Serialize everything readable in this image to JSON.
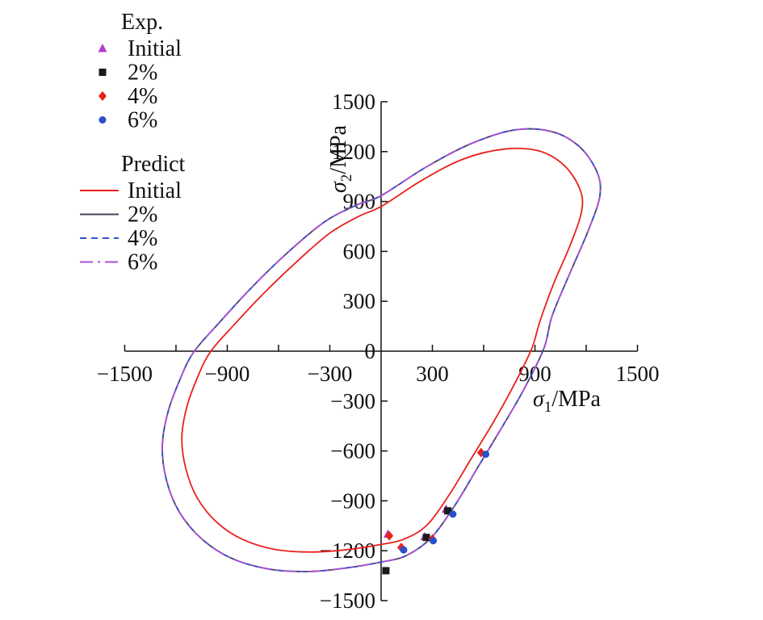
{
  "figure": {
    "background": "#ffffff",
    "axis_color": "#111111"
  },
  "chart_data": {
    "type": "line",
    "subtype": "yield-locus-with-experimental-scatter",
    "title": "",
    "x_axis": {
      "symbol": "σ",
      "subscript": "1",
      "unit": "/MPa",
      "min": -1500,
      "max": 1500,
      "tick_step": 300,
      "labeled_ticks": [
        -1500,
        -900,
        -300,
        300,
        900,
        1500
      ]
    },
    "y_axis": {
      "symbol": "σ",
      "subscript": "2",
      "unit": "/MPa",
      "min": -1500,
      "max": 1500,
      "tick_step": 300,
      "labeled_ticks": [
        1500,
        1200,
        900,
        600,
        300,
        0,
        -300,
        -600,
        -900,
        -1200,
        -1500
      ]
    },
    "legend": {
      "exp_header": "Exp.",
      "predict_header": "Predict"
    },
    "loci_shapes": {
      "initial": [
        [
          0,
          870
        ],
        [
          240,
          1028
        ],
        [
          480,
          1155
        ],
        [
          720,
          1215
        ],
        [
          920,
          1205
        ],
        [
          1068,
          1120
        ],
        [
          1160,
          982
        ],
        [
          1175,
          852
        ],
        [
          1112,
          652
        ],
        [
          1012,
          412
        ],
        [
          930,
          182
        ],
        [
          880,
          12
        ],
        [
          768,
          -222
        ],
        [
          648,
          -442
        ],
        [
          522,
          -655
        ],
        [
          396,
          -868
        ],
        [
          266,
          -1048
        ],
        [
          130,
          -1132
        ],
        [
          0,
          -1162
        ],
        [
          -186,
          -1192
        ],
        [
          -398,
          -1208
        ],
        [
          -620,
          -1192
        ],
        [
          -810,
          -1132
        ],
        [
          -962,
          -1028
        ],
        [
          -1076,
          -882
        ],
        [
          -1142,
          -708
        ],
        [
          -1166,
          -528
        ],
        [
          -1140,
          -348
        ],
        [
          -1076,
          -162
        ],
        [
          -1000,
          -6
        ],
        [
          -866,
          152
        ],
        [
          -692,
          342
        ],
        [
          -500,
          532
        ],
        [
          -300,
          710
        ],
        [
          -128,
          812
        ]
      ],
      "evolved": [
        [
          0,
          935
        ],
        [
          260,
          1105
        ],
        [
          520,
          1245
        ],
        [
          780,
          1330
        ],
        [
          1000,
          1320
        ],
        [
          1160,
          1230
        ],
        [
          1262,
          1080
        ],
        [
          1280,
          935
        ],
        [
          1212,
          725
        ],
        [
          1103,
          465
        ],
        [
          1000,
          210
        ],
        [
          952,
          15
        ],
        [
          830,
          -240
        ],
        [
          700,
          -470
        ],
        [
          565,
          -700
        ],
        [
          430,
          -930
        ],
        [
          290,
          -1125
        ],
        [
          145,
          -1230
        ],
        [
          0,
          -1268
        ],
        [
          -200,
          -1303
        ],
        [
          -430,
          -1325
        ],
        [
          -670,
          -1308
        ],
        [
          -880,
          -1243
        ],
        [
          -1050,
          -1128
        ],
        [
          -1180,
          -968
        ],
        [
          -1255,
          -778
        ],
        [
          -1280,
          -578
        ],
        [
          -1250,
          -378
        ],
        [
          -1180,
          -178
        ],
        [
          -1098,
          -8
        ],
        [
          -950,
          168
        ],
        [
          -760,
          380
        ],
        [
          -550,
          590
        ],
        [
          -330,
          778
        ],
        [
          -140,
          880
        ]
      ]
    },
    "predict_series": [
      {
        "name": "Initial",
        "color": "#e8211d",
        "dash": "solid",
        "shape": "initial"
      },
      {
        "name": "2%",
        "color": "#44445c",
        "dash": "solid",
        "shape": "evolved"
      },
      {
        "name": "4%",
        "color": "#3350cc",
        "dash": "dashed",
        "shape": "evolved"
      },
      {
        "name": "6%",
        "color": "#ab4fd1",
        "dash": "dashdot",
        "shape": "evolved"
      }
    ],
    "exp_series": [
      {
        "name": "Initial",
        "marker": "triangle",
        "color": "#b13fc9",
        "points": [
          [
            40,
            -1100
          ],
          [
            255,
            -1115
          ],
          [
            380,
            -950
          ]
        ]
      },
      {
        "name": "2%",
        "marker": "square",
        "color": "#1a1a1a",
        "points": [
          [
            28,
            -1320
          ],
          [
            265,
            -1120
          ],
          [
            390,
            -960
          ]
        ]
      },
      {
        "name": "4%",
        "marker": "diamond",
        "color": "#e8211d",
        "points": [
          [
            48,
            -1110
          ],
          [
            118,
            -1180
          ],
          [
            300,
            -1130
          ],
          [
            585,
            -610
          ]
        ]
      },
      {
        "name": "6%",
        "marker": "circle",
        "color": "#2850c8",
        "points": [
          [
            132,
            -1195
          ],
          [
            305,
            -1140
          ],
          [
            420,
            -980
          ],
          [
            612,
            -620
          ]
        ]
      }
    ]
  }
}
